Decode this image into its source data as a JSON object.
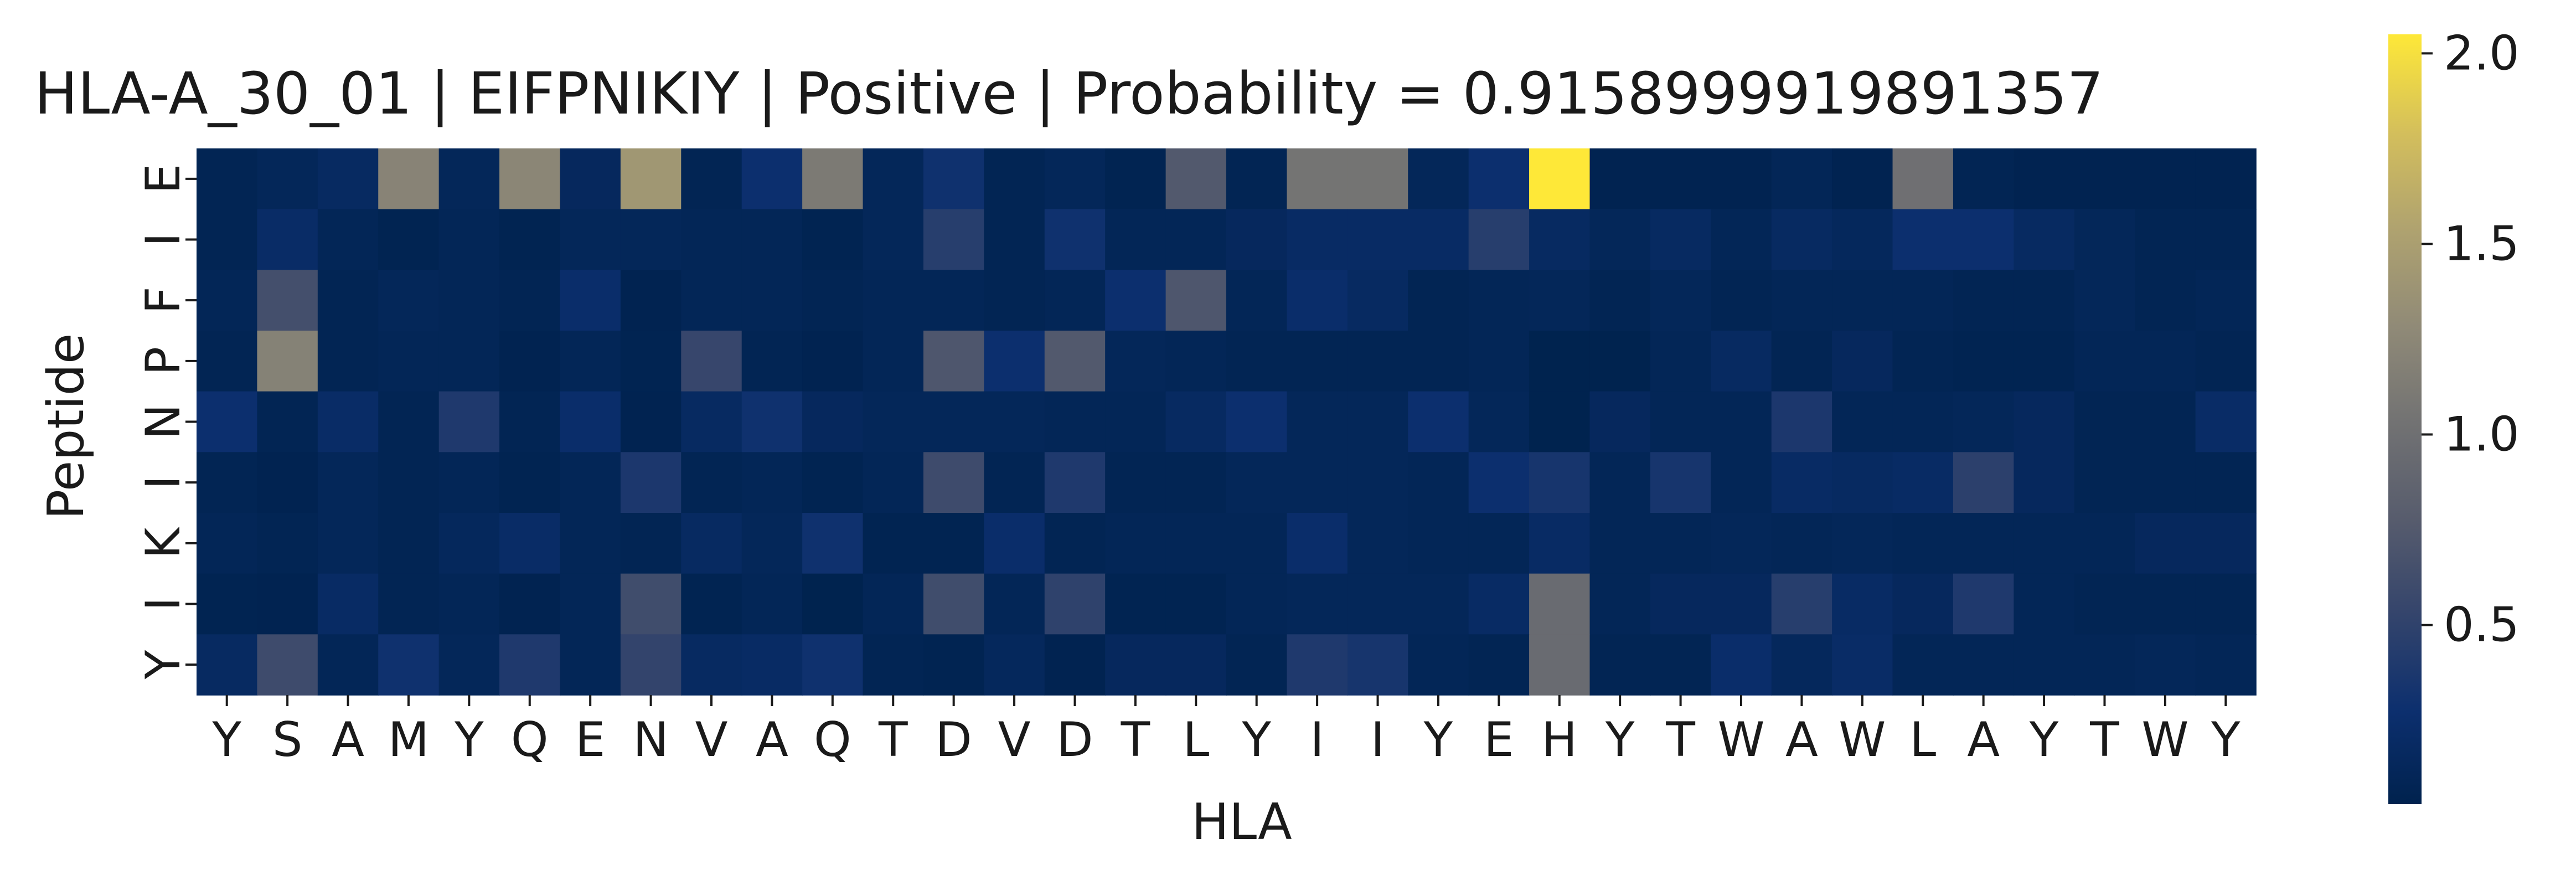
{
  "chart_data": {
    "type": "heatmap",
    "title": "HLA-A_30_01 | EIFPNIKIY | Positive | Probability = 0.9158999919891357",
    "xlabel": "HLA",
    "ylabel": "Peptide",
    "x_categories": [
      "Y",
      "S",
      "A",
      "M",
      "Y",
      "Q",
      "E",
      "N",
      "V",
      "A",
      "Q",
      "T",
      "D",
      "V",
      "D",
      "T",
      "L",
      "Y",
      "I",
      "I",
      "Y",
      "E",
      "H",
      "Y",
      "T",
      "W",
      "A",
      "W",
      "L",
      "A",
      "Y",
      "T",
      "W",
      "Y"
    ],
    "y_categories": [
      "E",
      "I",
      "F",
      "P",
      "N",
      "I",
      "K",
      "I",
      "Y"
    ],
    "colormap": "cividis",
    "vmin": 0.03,
    "vmax": 2.05,
    "colorbar_ticks": [
      0.5,
      1.0,
      1.5,
      2.0
    ],
    "colorbar_tick_labels": [
      "0.5",
      "1.0",
      "1.5",
      "2.0"
    ],
    "values": [
      [
        0.08,
        0.12,
        0.18,
        1.22,
        0.12,
        1.25,
        0.15,
        1.42,
        0.08,
        0.28,
        1.12,
        0.12,
        0.3,
        0.08,
        0.12,
        0.06,
        0.75,
        0.08,
        1.05,
        1.05,
        0.12,
        0.28,
        2.05,
        0.05,
        0.05,
        0.05,
        0.1,
        0.05,
        1.0,
        0.08,
        0.05,
        0.05,
        0.05,
        0.05
      ],
      [
        0.08,
        0.22,
        0.1,
        0.06,
        0.1,
        0.06,
        0.12,
        0.12,
        0.1,
        0.1,
        0.06,
        0.12,
        0.45,
        0.08,
        0.3,
        0.1,
        0.1,
        0.15,
        0.2,
        0.2,
        0.2,
        0.45,
        0.18,
        0.12,
        0.18,
        0.1,
        0.18,
        0.14,
        0.28,
        0.28,
        0.18,
        0.12,
        0.08,
        0.08
      ],
      [
        0.1,
        0.65,
        0.08,
        0.12,
        0.1,
        0.08,
        0.25,
        0.05,
        0.1,
        0.1,
        0.08,
        0.1,
        0.1,
        0.08,
        0.1,
        0.28,
        0.72,
        0.1,
        0.25,
        0.18,
        0.08,
        0.1,
        0.12,
        0.08,
        0.12,
        0.08,
        0.1,
        0.1,
        0.1,
        0.08,
        0.08,
        0.12,
        0.08,
        0.1
      ],
      [
        0.08,
        1.2,
        0.08,
        0.1,
        0.1,
        0.05,
        0.1,
        0.06,
        0.55,
        0.08,
        0.05,
        0.1,
        0.72,
        0.28,
        0.75,
        0.12,
        0.1,
        0.08,
        0.08,
        0.08,
        0.08,
        0.1,
        0.04,
        0.04,
        0.1,
        0.18,
        0.08,
        0.15,
        0.08,
        0.06,
        0.06,
        0.1,
        0.1,
        0.08
      ],
      [
        0.28,
        0.08,
        0.22,
        0.08,
        0.4,
        0.08,
        0.25,
        0.05,
        0.18,
        0.3,
        0.15,
        0.12,
        0.12,
        0.12,
        0.1,
        0.1,
        0.18,
        0.28,
        0.12,
        0.12,
        0.28,
        0.12,
        0.04,
        0.15,
        0.1,
        0.1,
        0.38,
        0.1,
        0.1,
        0.12,
        0.15,
        0.08,
        0.08,
        0.22
      ],
      [
        0.08,
        0.05,
        0.12,
        0.08,
        0.1,
        0.06,
        0.1,
        0.38,
        0.08,
        0.1,
        0.06,
        0.1,
        0.6,
        0.08,
        0.4,
        0.08,
        0.08,
        0.12,
        0.12,
        0.12,
        0.1,
        0.28,
        0.35,
        0.1,
        0.35,
        0.1,
        0.2,
        0.18,
        0.2,
        0.48,
        0.15,
        0.08,
        0.08,
        0.08
      ],
      [
        0.1,
        0.08,
        0.12,
        0.08,
        0.14,
        0.22,
        0.1,
        0.08,
        0.18,
        0.12,
        0.3,
        0.06,
        0.06,
        0.25,
        0.08,
        0.1,
        0.1,
        0.1,
        0.25,
        0.12,
        0.1,
        0.1,
        0.2,
        0.1,
        0.1,
        0.12,
        0.1,
        0.12,
        0.1,
        0.1,
        0.1,
        0.1,
        0.15,
        0.15
      ],
      [
        0.06,
        0.05,
        0.2,
        0.08,
        0.1,
        0.05,
        0.1,
        0.62,
        0.06,
        0.1,
        0.04,
        0.1,
        0.62,
        0.1,
        0.5,
        0.06,
        0.06,
        0.1,
        0.12,
        0.12,
        0.12,
        0.2,
        0.95,
        0.1,
        0.15,
        0.15,
        0.45,
        0.2,
        0.15,
        0.4,
        0.1,
        0.08,
        0.08,
        0.08
      ],
      [
        0.18,
        0.6,
        0.1,
        0.3,
        0.12,
        0.4,
        0.1,
        0.52,
        0.18,
        0.2,
        0.3,
        0.08,
        0.06,
        0.14,
        0.05,
        0.15,
        0.15,
        0.08,
        0.4,
        0.35,
        0.1,
        0.08,
        0.95,
        0.08,
        0.08,
        0.25,
        0.14,
        0.22,
        0.1,
        0.1,
        0.1,
        0.1,
        0.12,
        0.1
      ]
    ]
  }
}
